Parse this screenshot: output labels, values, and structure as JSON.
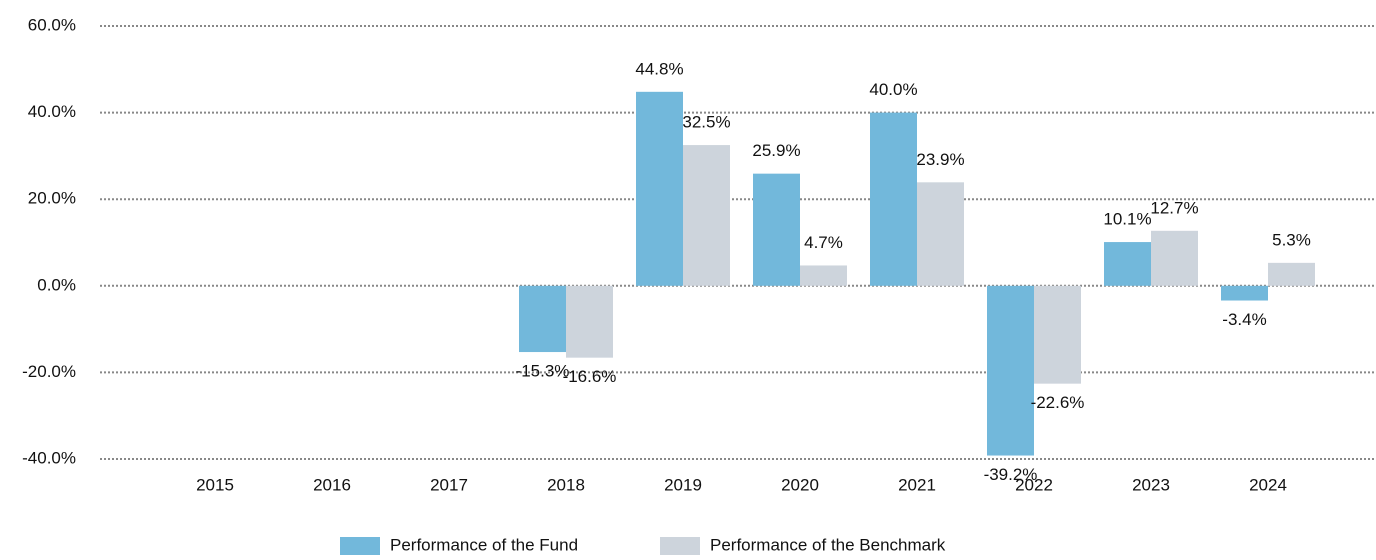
{
  "chart_data": {
    "type": "bar",
    "categories": [
      "2015",
      "2016",
      "2017",
      "2018",
      "2019",
      "2020",
      "2021",
      "2022",
      "2023",
      "2024"
    ],
    "series": [
      {
        "name": "Performance of the Fund",
        "color": "#72b8db",
        "values": [
          null,
          null,
          null,
          -15.3,
          44.8,
          25.9,
          40.0,
          -39.2,
          10.1,
          -3.4
        ],
        "value_labels": [
          null,
          null,
          null,
          "-15.3%",
          "44.8%",
          "25.9%",
          "40.0%",
          "-39.2%",
          "10.1%",
          "-3.4%"
        ]
      },
      {
        "name": "Performance of the Benchmark",
        "color": "#cdd4dc",
        "values": [
          null,
          null,
          null,
          -16.6,
          32.5,
          4.7,
          23.9,
          -22.6,
          12.7,
          5.3
        ],
        "value_labels": [
          null,
          null,
          null,
          "-16.6%",
          "32.5%",
          "4.7%",
          "23.9%",
          "-22.6%",
          "12.7%",
          "5.3%"
        ]
      }
    ],
    "ylim": [
      -40,
      60
    ],
    "yticks": [
      {
        "value": -40,
        "label": "-40.0%"
      },
      {
        "value": -20,
        "label": "-20.0%"
      },
      {
        "value": 0,
        "label": "0.0%"
      },
      {
        "value": 20,
        "label": "20.0%"
      },
      {
        "value": 40,
        "label": "40.0%"
      },
      {
        "value": 60,
        "label": "60.0%"
      }
    ],
    "grid": true,
    "legend": "bottom"
  }
}
